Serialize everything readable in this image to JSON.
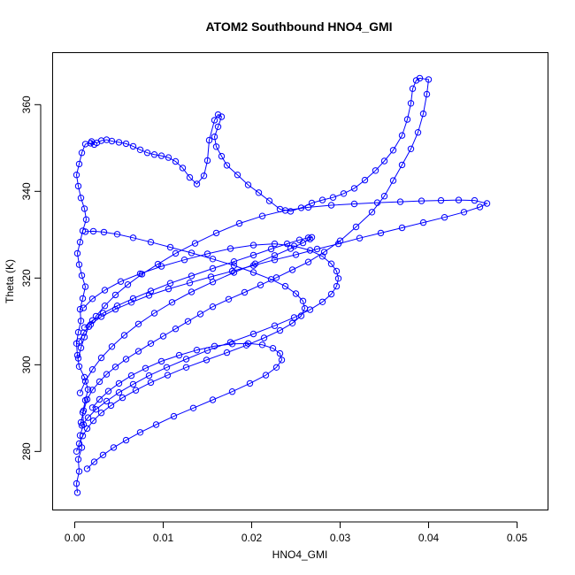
{
  "chart_data": {
    "type": "scatter",
    "title": "ATOM2 Southbound HNO4_GMI",
    "xlabel": "HNO4_GMI",
    "ylabel": "Theta (K)",
    "xlim": [
      -0.0025,
      0.0535
    ],
    "ylim": [
      266.5,
      372
    ],
    "x_ticks": [
      0.0,
      0.01,
      0.02,
      0.03,
      0.04,
      0.05
    ],
    "x_tick_labels": [
      "0.00",
      "0.01",
      "0.02",
      "0.03",
      "0.04",
      "0.05"
    ],
    "y_ticks": [
      280,
      300,
      320,
      340,
      360
    ],
    "y_tick_labels": [
      "280",
      "300",
      "320",
      "340",
      "360"
    ],
    "color": "#0000ff",
    "markers": "open-circle",
    "connected": true,
    "grid": false,
    "series": [
      {
        "x": [
          0.0003,
          0.0002,
          0.0005,
          0.0004,
          0.0008,
          0.0006,
          0.001,
          0.0009,
          0.0012,
          0.0015,
          0.0011,
          0.0005,
          0.0003,
          0.0002,
          0.0004,
          0.0007,
          0.0006,
          0.0009,
          0.0012,
          0.0008,
          0.0005,
          0.0003,
          0.0006,
          0.0009,
          0.0013,
          0.0011,
          0.0007,
          0.0004,
          0.0002,
          0.0005,
          0.0008,
          0.0012,
          0.0018,
          0.0022,
          0.0019,
          0.0025,
          0.003,
          0.0036,
          0.0042,
          0.005,
          0.0058,
          0.0066,
          0.0074,
          0.0082,
          0.009,
          0.0098,
          0.0106,
          0.0114,
          0.0122,
          0.013,
          0.0138,
          0.0146,
          0.015,
          0.0152,
          0.0158,
          0.0162,
          0.0166,
          0.0162,
          0.0158,
          0.016,
          0.0166,
          0.0172,
          0.0184,
          0.0196,
          0.0208,
          0.022,
          0.0232,
          0.0244,
          0.0256,
          0.0268,
          0.028,
          0.0292,
          0.0304,
          0.0316,
          0.0328,
          0.034,
          0.035,
          0.036,
          0.037,
          0.0376,
          0.038,
          0.0382,
          0.0386,
          0.039,
          0.04,
          0.0398,
          0.0394,
          0.0388,
          0.038,
          0.037,
          0.036,
          0.035,
          0.0336,
          0.0318,
          0.03,
          0.0282,
          0.0264,
          0.0246,
          0.0228,
          0.021,
          0.0192,
          0.0174,
          0.0156,
          0.0142,
          0.0128,
          0.0114,
          0.01,
          0.0086,
          0.0072,
          0.0058,
          0.0046,
          0.0036,
          0.0028,
          0.002,
          0.0014,
          0.001,
          0.0007
        ],
        "y": [
          270.5,
          272.6,
          275.4,
          278.2,
          280.9,
          283.7,
          286.2,
          289.0,
          291.8,
          294.3,
          297.1,
          299.6,
          302.2,
          304.9,
          307.5,
          310.1,
          312.8,
          315.3,
          318.0,
          320.6,
          323.1,
          325.7,
          328.3,
          330.9,
          333.5,
          336.0,
          338.5,
          341.2,
          343.8,
          346.3,
          348.9,
          350.9,
          351.1,
          350.8,
          351.5,
          351.2,
          351.7,
          351.9,
          351.6,
          351.3,
          351.0,
          350.4,
          349.6,
          348.9,
          348.5,
          348.2,
          347.8,
          346.9,
          345.4,
          343.2,
          341.7,
          343.6,
          347.1,
          351.8,
          356.4,
          357.7,
          357.2,
          354.9,
          352.6,
          350.3,
          348.1,
          346.0,
          343.8,
          341.5,
          339.7,
          337.8,
          335.9,
          335.4,
          336.2,
          337.3,
          338.0,
          338.6,
          339.5,
          340.7,
          342.6,
          344.8,
          347.0,
          349.5,
          352.9,
          356.6,
          360.3,
          363.7,
          365.6,
          366.1,
          365.8,
          362.4,
          357.9,
          353.6,
          349.8,
          346.1,
          342.5,
          338.9,
          335.2,
          331.8,
          328.6,
          326.0,
          323.7,
          321.9,
          320.1,
          318.4,
          316.7,
          315.1,
          313.4,
          311.7,
          310.0,
          308.3,
          306.6,
          304.9,
          303.1,
          301.3,
          299.5,
          297.8,
          296.1,
          294.2,
          292.0,
          289.4,
          286.7
        ]
      },
      {
        "x": [
          0.0004,
          0.0007,
          0.0011,
          0.0016,
          0.0024,
          0.0034,
          0.0046,
          0.006,
          0.0076,
          0.0094,
          0.0114,
          0.0136,
          0.016,
          0.0186,
          0.0212,
          0.0238,
          0.0264,
          0.029,
          0.0316,
          0.0342,
          0.0368,
          0.0392,
          0.0414,
          0.0434,
          0.0452,
          0.0466,
          0.0458,
          0.044,
          0.0418,
          0.0394,
          0.037,
          0.0346,
          0.0322,
          0.0298,
          0.0274,
          0.025,
          0.0226,
          0.0202,
          0.0178,
          0.0154,
          0.013,
          0.0106,
          0.0084,
          0.0064,
          0.0046,
          0.003,
          0.0018,
          0.001,
          0.0005
        ],
        "y": [
          301.5,
          303.9,
          306.4,
          308.8,
          311.2,
          313.6,
          316.1,
          318.5,
          320.9,
          323.2,
          325.7,
          328.0,
          330.4,
          332.6,
          334.3,
          335.6,
          336.3,
          336.8,
          337.1,
          337.4,
          337.6,
          337.8,
          337.9,
          338.0,
          337.9,
          337.2,
          336.4,
          335.2,
          334.0,
          332.8,
          331.6,
          330.4,
          329.2,
          327.9,
          326.7,
          325.4,
          324.2,
          322.9,
          321.6,
          320.3,
          318.9,
          317.5,
          316.0,
          314.4,
          312.8,
          311.1,
          309.3,
          307.4,
          305.4
        ]
      },
      {
        "x": [
          0.0008,
          0.0015,
          0.0024,
          0.0036,
          0.005,
          0.0066,
          0.0084,
          0.0104,
          0.0126,
          0.015,
          0.0176,
          0.0202,
          0.0226,
          0.0248,
          0.0266,
          0.028,
          0.029,
          0.0296,
          0.0298,
          0.0296,
          0.029,
          0.028,
          0.0266,
          0.0248,
          0.0226,
          0.0202,
          0.0176,
          0.015,
          0.0124,
          0.0098,
          0.0074,
          0.0052,
          0.0034,
          0.002,
          0.001
        ],
        "y": [
          286.0,
          287.8,
          289.7,
          291.6,
          293.6,
          295.5,
          297.5,
          299.4,
          301.3,
          303.3,
          305.2,
          307.1,
          309.0,
          310.9,
          312.7,
          314.5,
          316.3,
          318.1,
          319.9,
          321.6,
          323.3,
          325.0,
          326.4,
          327.4,
          327.9,
          327.6,
          326.8,
          325.6,
          324.2,
          322.7,
          321.0,
          319.2,
          317.2,
          315.2,
          313.1
        ]
      },
      {
        "x": [
          0.0002,
          0.0005,
          0.0009,
          0.0014,
          0.0021,
          0.003,
          0.0041,
          0.0054,
          0.0069,
          0.0086,
          0.0105,
          0.0126,
          0.0149,
          0.0172,
          0.0194,
          0.0214,
          0.0232,
          0.0246,
          0.0256,
          0.026,
          0.0258,
          0.025,
          0.0238,
          0.0222,
          0.0202,
          0.018,
          0.0156,
          0.0132,
          0.0108,
          0.0086,
          0.0066,
          0.0048,
          0.0033,
          0.0021,
          0.0012
        ],
        "y": [
          280.0,
          281.8,
          283.6,
          285.3,
          287.1,
          288.9,
          290.6,
          292.4,
          294.1,
          295.9,
          297.6,
          299.4,
          301.1,
          302.8,
          304.5,
          306.2,
          307.9,
          309.6,
          311.3,
          313.0,
          314.7,
          316.4,
          318.1,
          319.7,
          321.3,
          322.9,
          324.4,
          325.8,
          327.1,
          328.3,
          329.3,
          330.1,
          330.6,
          330.8,
          330.7
        ]
      },
      {
        "x": [
          0.0006,
          0.0012,
          0.002,
          0.003,
          0.0042,
          0.0056,
          0.0072,
          0.009,
          0.011,
          0.0132,
          0.0156,
          0.018,
          0.0204,
          0.0226,
          0.0244,
          0.0258,
          0.0266,
          0.0268,
          0.0264,
          0.0254,
          0.024,
          0.0222,
          0.0202,
          0.018,
          0.0156,
          0.0132,
          0.0108,
          0.0086,
          0.0066,
          0.0048,
          0.0032,
          0.002,
          0.0011
        ],
        "y": [
          293.5,
          296.2,
          298.9,
          301.6,
          304.2,
          306.8,
          309.4,
          311.9,
          314.4,
          316.8,
          319.1,
          321.3,
          323.3,
          325.2,
          326.8,
          328.1,
          329.0,
          329.4,
          329.3,
          328.8,
          327.9,
          326.7,
          325.3,
          323.8,
          322.2,
          320.5,
          318.8,
          317.0,
          315.3,
          313.6,
          311.9,
          310.2,
          308.6
        ]
      },
      {
        "x": [
          0.0014,
          0.0022,
          0.0032,
          0.0044,
          0.0058,
          0.0074,
          0.0092,
          0.0112,
          0.0134,
          0.0156,
          0.0178,
          0.0198,
          0.0216,
          0.0228,
          0.0234,
          0.0232,
          0.0224,
          0.0212,
          0.0196,
          0.0178,
          0.0158,
          0.0138,
          0.0118,
          0.0098,
          0.008,
          0.0064,
          0.005,
          0.0038,
          0.0028,
          0.002
        ],
        "y": [
          276.0,
          277.6,
          279.2,
          280.9,
          282.6,
          284.4,
          286.2,
          288.1,
          290.0,
          291.9,
          293.8,
          295.7,
          297.6,
          299.4,
          301.1,
          302.6,
          303.8,
          304.6,
          304.9,
          304.8,
          304.3,
          303.4,
          302.2,
          300.8,
          299.2,
          297.5,
          295.7,
          293.9,
          292.0,
          290.1
        ]
      }
    ]
  }
}
